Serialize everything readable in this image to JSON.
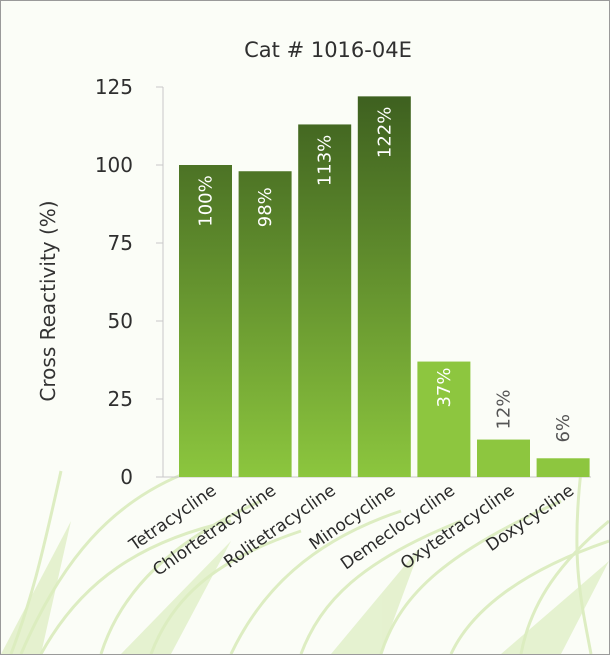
{
  "chart_data": {
    "type": "bar",
    "title": "Cat # 1016-04E",
    "xlabel": "",
    "ylabel": "Cross Reactivity (%)",
    "ylim": [
      0,
      125
    ],
    "yticks": [
      "0",
      "25",
      "50",
      "75",
      "100",
      "125"
    ],
    "grid": false,
    "categories": [
      "Tetracycline",
      "Chlortetracycline",
      "Rolitetracycline",
      "Minocycline",
      "Demeclocycline",
      "Oxytetracycline",
      "Doxycycline"
    ],
    "values": [
      100,
      98,
      113,
      122,
      37,
      12,
      6
    ],
    "data_labels": [
      "100%",
      "98%",
      "113%",
      "122%",
      "37%",
      "12%",
      "6%"
    ],
    "colors": {
      "bar_top_dark": "#3d5f1f",
      "bar_bottom_light": "#8cc63e",
      "bar_light": "#8dc63f",
      "label_on_bar": "#ffffff",
      "label_above_bar": "#555555",
      "background_grass": "#cfe6a8"
    }
  }
}
